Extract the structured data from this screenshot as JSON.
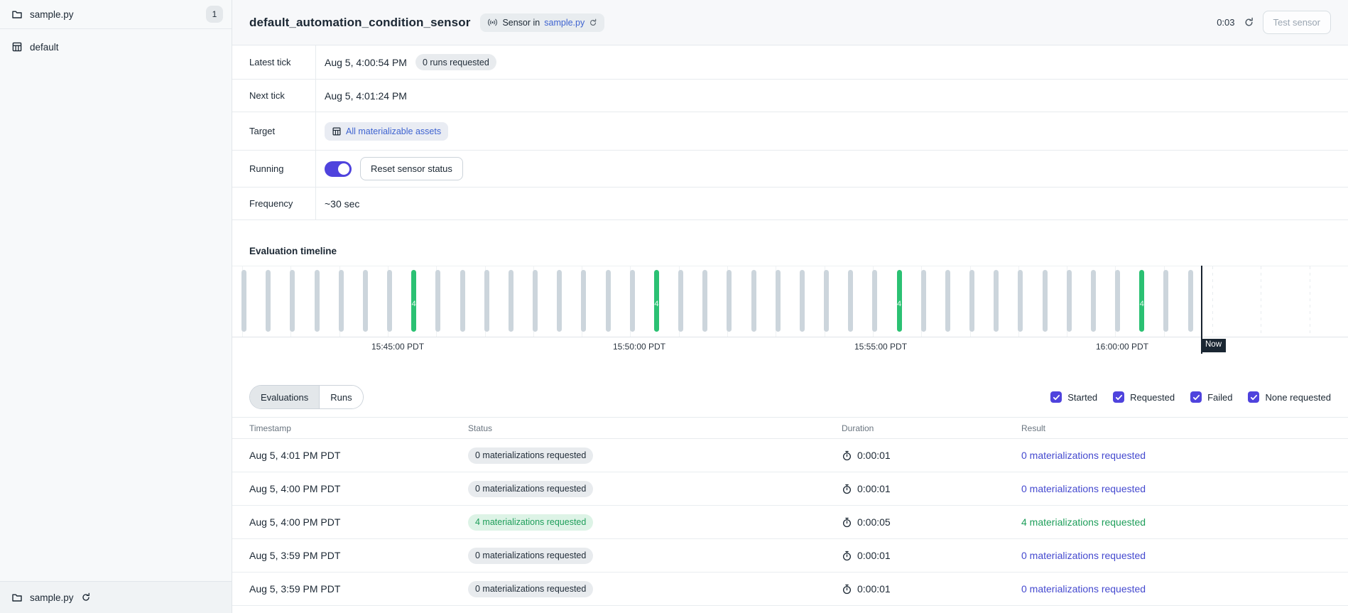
{
  "colors": {
    "accent": "#4f43dd",
    "link": "#3e63d0",
    "result_link": "#4449cf",
    "green": "#2bc173",
    "green_text": "#1e9e5a"
  },
  "sidebar": {
    "code_location": {
      "label": "sample.py",
      "badge": "1"
    },
    "items": [
      {
        "label": "default"
      }
    ],
    "footer": {
      "label": "sample.py"
    }
  },
  "header": {
    "title": "default_automation_condition_sensor",
    "badge_prefix": "Sensor in",
    "badge_link": "sample.py",
    "timer": "0:03",
    "test_button": "Test sensor"
  },
  "info": {
    "latest_tick_label": "Latest tick",
    "latest_tick_value": "Aug 5, 4:00:54 PM",
    "latest_tick_badge": "0 runs requested",
    "next_tick_label": "Next tick",
    "next_tick_value": "Aug 5, 4:01:24 PM",
    "target_label": "Target",
    "target_value": "All materializable assets",
    "running_label": "Running",
    "reset_button": "Reset sensor status",
    "frequency_label": "Frequency",
    "frequency_value": "~30 sec"
  },
  "timeline": {
    "title": "Evaluation timeline",
    "axis_labels": [
      "15:45:00 PDT",
      "15:50:00 PDT",
      "15:55:00 PDT",
      "16:00:00 PDT"
    ],
    "now_label": "Now",
    "bar_count": 40,
    "green_bar_indexes": [
      7,
      17,
      27,
      37
    ],
    "green_bar_value": "4"
  },
  "tabs": [
    {
      "label": "Evaluations",
      "active": true
    },
    {
      "label": "Runs",
      "active": false
    }
  ],
  "filters": [
    {
      "label": "Started",
      "checked": true
    },
    {
      "label": "Requested",
      "checked": true
    },
    {
      "label": "Failed",
      "checked": true
    },
    {
      "label": "None requested",
      "checked": true
    }
  ],
  "table": {
    "columns": [
      "Timestamp",
      "Status",
      "Duration",
      "Result"
    ],
    "rows": [
      {
        "timestamp": "Aug 5, 4:01 PM PDT",
        "status": "0 materializations requested",
        "status_kind": "neutral",
        "duration": "0:00:01",
        "result": "0 materializations requested",
        "result_kind": "default"
      },
      {
        "timestamp": "Aug 5, 4:00 PM PDT",
        "status": "0 materializations requested",
        "status_kind": "neutral",
        "duration": "0:00:01",
        "result": "0 materializations requested",
        "result_kind": "default"
      },
      {
        "timestamp": "Aug 5, 4:00 PM PDT",
        "status": "4 materializations requested",
        "status_kind": "success",
        "duration": "0:00:05",
        "result": "4 materializations requested",
        "result_kind": "success"
      },
      {
        "timestamp": "Aug 5, 3:59 PM PDT",
        "status": "0 materializations requested",
        "status_kind": "neutral",
        "duration": "0:00:01",
        "result": "0 materializations requested",
        "result_kind": "default"
      },
      {
        "timestamp": "Aug 5, 3:59 PM PDT",
        "status": "0 materializations requested",
        "status_kind": "neutral",
        "duration": "0:00:01",
        "result": "0 materializations requested",
        "result_kind": "default"
      }
    ]
  }
}
